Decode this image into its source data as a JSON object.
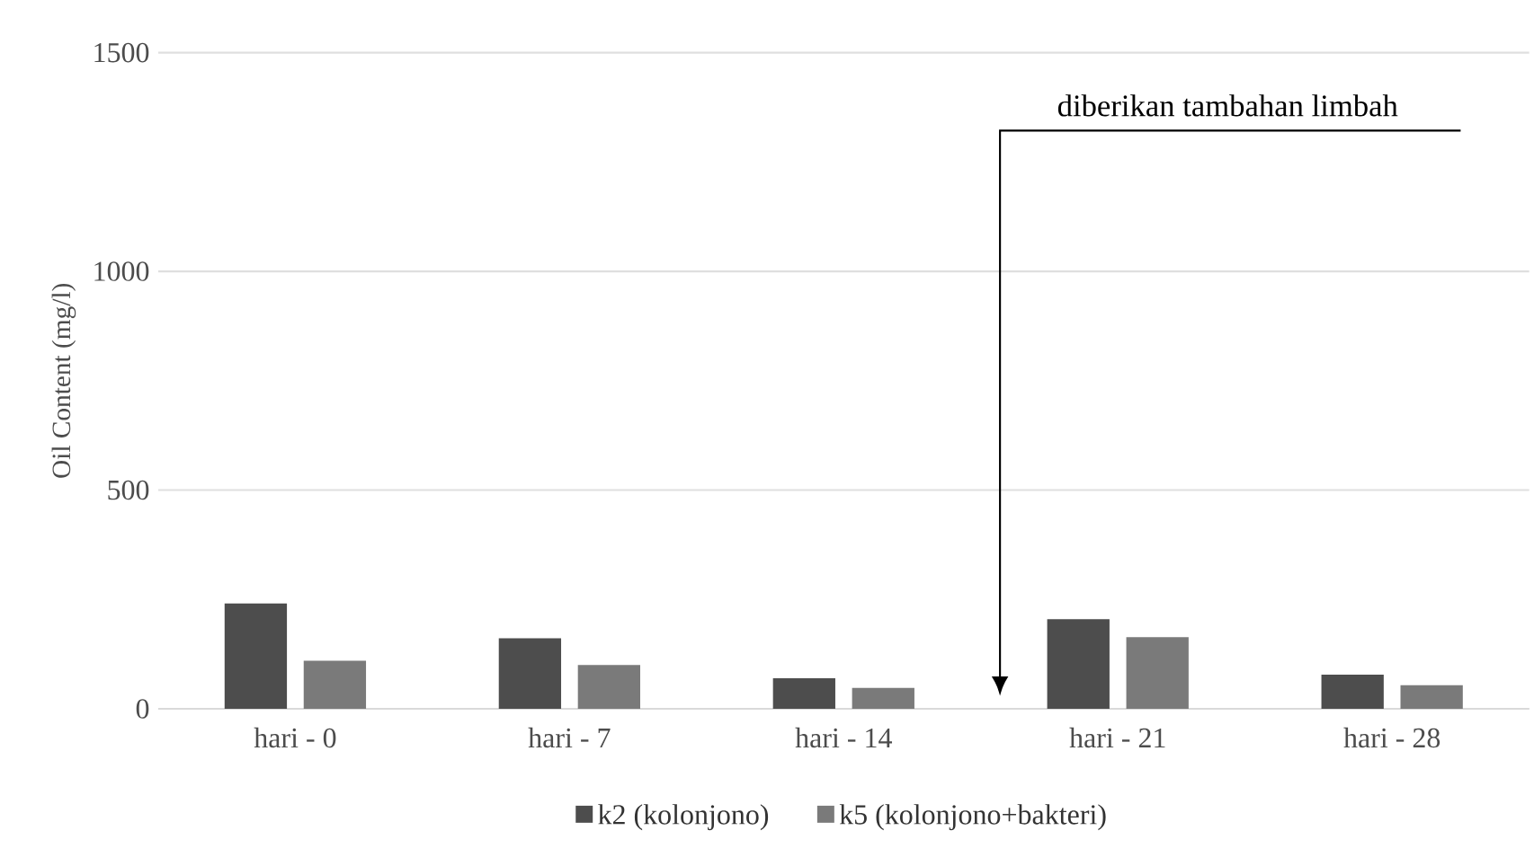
{
  "chart_data": {
    "type": "bar",
    "ylabel": "Oil Content (mg/l)",
    "categories": [
      "hari - 0",
      "hari - 7",
      "hari - 14",
      "hari - 21",
      "hari - 28"
    ],
    "series": [
      {
        "name": "k2 (kolonjono)",
        "color": "#4d4d4d",
        "values": [
          241,
          161,
          70,
          205,
          78
        ]
      },
      {
        "name": "k5 (kolonjono+bakteri)",
        "color": "#7a7a7a",
        "values": [
          110,
          100,
          48,
          164,
          54
        ]
      }
    ],
    "ylim": [
      0,
      1500
    ],
    "yticks": [
      0,
      500,
      1000,
      1500
    ],
    "grid": "y",
    "legend": "bottom",
    "annotations": [
      "diberikan tambahan limbah"
    ]
  }
}
